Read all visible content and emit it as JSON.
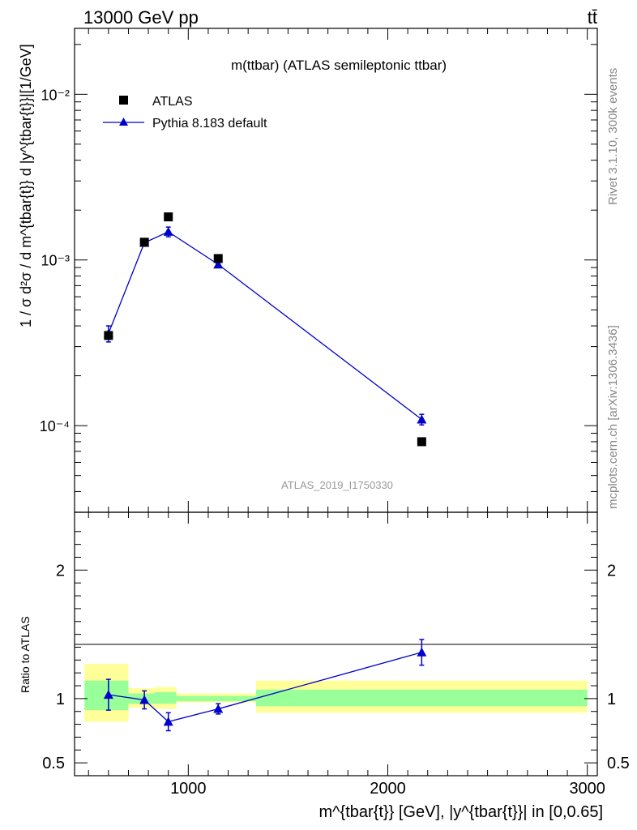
{
  "header": {
    "energy_label": "13000 GeV pp",
    "process_label": "tt̄"
  },
  "side_labels": {
    "rivet": "Rivet 3.1.10,  300k events",
    "source": "mcplots.cern.ch [arXiv:1306.3436]"
  },
  "chart_data": [
    {
      "type": "scatter",
      "panel": "main",
      "title": "m(ttbar) (ATLAS semileptonic ttbar)",
      "analysis_label": "ATLAS_2019_I1750330",
      "ylabel": "1 / σ d²σ / d m^{tbar{t}} d |y^{tbar{t}}|[1/GeV]",
      "yscale": "log",
      "ylim": [
        3e-05,
        0.025
      ],
      "xlim": [
        430,
        3050
      ],
      "y_ticks": [
        {
          "value": 0.0001,
          "label": "10⁻⁴"
        },
        {
          "value": 0.001,
          "label": "10⁻³"
        },
        {
          "value": 0.01,
          "label": "10⁻²"
        }
      ],
      "legend": {
        "position": "top-left",
        "entries": [
          "ATLAS",
          "Pythia 8.183 default"
        ]
      },
      "series": [
        {
          "name": "ATLAS",
          "marker": "square",
          "color": "#000000",
          "x": [
            600,
            780,
            900,
            1150,
            2170
          ],
          "y": [
            0.00035,
            0.00128,
            0.00182,
            0.00102,
            8e-05
          ]
        },
        {
          "name": "Pythia 8.183 default",
          "marker": "triangle",
          "color": "#0000cc",
          "x": [
            600,
            780,
            900,
            1150,
            2170
          ],
          "y": [
            0.00036,
            0.00127,
            0.00148,
            0.00094,
            0.000109
          ],
          "yerr": [
            4e-05,
            6e-05,
            0.0001,
            4e-05,
            8e-06
          ]
        }
      ]
    },
    {
      "type": "scatter",
      "panel": "ratio",
      "ylabel": "Ratio to ATLAS",
      "xlabel": "m^{tbar{t}} [GeV], |y^{tbar{t}}| in [0,0.65]",
      "xlim": [
        430,
        3050
      ],
      "ylim": [
        0.4,
        2.45
      ],
      "x_ticks": [
        {
          "value": 1000,
          "label": "1000"
        },
        {
          "value": 2000,
          "label": "2000"
        },
        {
          "value": 3000,
          "label": "3000"
        }
      ],
      "y_ticks": [
        {
          "value": 0.5,
          "label": "0.5"
        },
        {
          "value": 1,
          "label": "1"
        },
        {
          "value": 2,
          "label": "2"
        }
      ],
      "bands": [
        {
          "x_lo": 480,
          "x_hi": 700,
          "yellow": [
            0.82,
            1.27
          ],
          "green": [
            0.91,
            1.14
          ]
        },
        {
          "x_lo": 700,
          "x_hi": 830,
          "yellow": [
            0.93,
            1.08
          ],
          "green": [
            0.96,
            1.04
          ]
        },
        {
          "x_lo": 830,
          "x_hi": 940,
          "yellow": [
            0.92,
            1.09
          ],
          "green": [
            0.96,
            1.05
          ]
        },
        {
          "x_lo": 940,
          "x_hi": 1340,
          "yellow": [
            0.97,
            1.04
          ],
          "green": [
            0.98,
            1.02
          ]
        },
        {
          "x_lo": 1340,
          "x_hi": 3000,
          "yellow": [
            0.89,
            1.14
          ],
          "green": [
            0.94,
            1.07
          ]
        }
      ],
      "series": [
        {
          "name": "Pythia 8.183 default",
          "marker": "triangle",
          "color": "#0000cc",
          "x": [
            600,
            780,
            900,
            1150,
            2170
          ],
          "y": [
            1.03,
            0.99,
            0.82,
            0.92,
            1.36
          ],
          "yerr": [
            0.12,
            0.07,
            0.07,
            0.04,
            0.1
          ]
        }
      ]
    }
  ]
}
